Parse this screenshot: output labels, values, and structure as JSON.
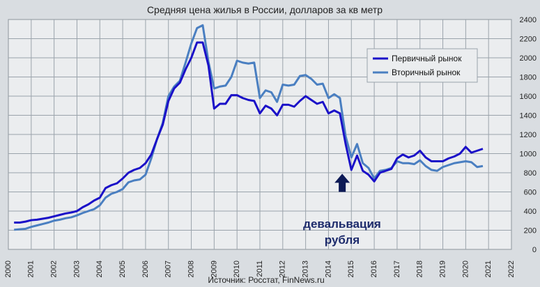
{
  "chart_data": {
    "type": "line",
    "title": "Средняя цена жилья в России, долларов за кв метр",
    "xlabel": "",
    "ylabel": "",
    "source": "Источник: Росстат, FinNews.ru",
    "xlim": [
      2000,
      2022
    ],
    "ylim": [
      0,
      2400
    ],
    "x_ticks": [
      "2000",
      "2001",
      "2002",
      "2003",
      "2004",
      "2005",
      "2006",
      "2007",
      "2008",
      "2009",
      "2010",
      "2011",
      "2012",
      "2013",
      "2014",
      "2015",
      "2016",
      "2017",
      "2018",
      "2019",
      "2020",
      "2021",
      "2022"
    ],
    "y_ticks": [
      "0",
      "200",
      "400",
      "600",
      "800",
      "1000",
      "1200",
      "1400",
      "1600",
      "1800",
      "2000",
      "2200",
      "2400"
    ],
    "grid": true,
    "legend_position": "top-right",
    "annotation": {
      "lines": [
        "девальвация",
        "рубля"
      ],
      "arrow_x": 2014.6,
      "arrow_y_from": 600,
      "arrow_y_to": 790
    },
    "colors": {
      "primary": "#1a10c8",
      "secondary": "#4a7fc1",
      "plot_bg": "#ebedef",
      "grid": "#9aa3ab",
      "arrow": "#0d1a56"
    },
    "series": [
      {
        "name": "Первичный рынок",
        "x": [
          2000.25,
          2000.5,
          2000.75,
          2001,
          2001.25,
          2001.5,
          2001.75,
          2002,
          2002.25,
          2002.5,
          2002.75,
          2003,
          2003.25,
          2003.5,
          2003.75,
          2004,
          2004.25,
          2004.5,
          2004.75,
          2005,
          2005.25,
          2005.5,
          2005.75,
          2006,
          2006.25,
          2006.5,
          2006.75,
          2007,
          2007.25,
          2007.5,
          2007.75,
          2008,
          2008.25,
          2008.5,
          2008.75,
          2009,
          2009.25,
          2009.5,
          2009.75,
          2010,
          2010.25,
          2010.5,
          2010.75,
          2011,
          2011.25,
          2011.5,
          2011.75,
          2012,
          2012.25,
          2012.5,
          2012.75,
          2013,
          2013.25,
          2013.5,
          2013.75,
          2014,
          2014.25,
          2014.5,
          2014.75,
          2015,
          2015.25,
          2015.5,
          2015.75,
          2016,
          2016.25,
          2016.5,
          2016.75,
          2017,
          2017.25,
          2017.5,
          2017.75,
          2018,
          2018.25,
          2018.5,
          2018.75,
          2019,
          2019.25,
          2019.5,
          2019.75,
          2020,
          2020.25,
          2020.5,
          2020.75
        ],
        "values": [
          280,
          280,
          290,
          305,
          310,
          320,
          330,
          345,
          360,
          375,
          385,
          400,
          440,
          470,
          510,
          540,
          640,
          670,
          690,
          740,
          800,
          830,
          850,
          900,
          990,
          1150,
          1300,
          1550,
          1680,
          1740,
          1880,
          2000,
          2160,
          2160,
          1920,
          1470,
          1520,
          1520,
          1610,
          1610,
          1580,
          1560,
          1550,
          1420,
          1500,
          1470,
          1400,
          1510,
          1510,
          1490,
          1550,
          1600,
          1560,
          1520,
          1540,
          1420,
          1450,
          1420,
          1100,
          830,
          980,
          820,
          780,
          710,
          800,
          820,
          840,
          950,
          990,
          960,
          980,
          1030,
          960,
          920,
          920,
          920,
          950,
          970,
          1000,
          1070,
          1010,
          1030,
          1050
        ]
      },
      {
        "name": "Вторичный рынок",
        "x": [
          2000.25,
          2000.5,
          2000.75,
          2001,
          2001.25,
          2001.5,
          2001.75,
          2002,
          2002.25,
          2002.5,
          2002.75,
          2003,
          2003.25,
          2003.5,
          2003.75,
          2004,
          2004.25,
          2004.5,
          2004.75,
          2005,
          2005.25,
          2005.5,
          2005.75,
          2006,
          2006.25,
          2006.5,
          2006.75,
          2007,
          2007.25,
          2007.5,
          2007.75,
          2008,
          2008.25,
          2008.5,
          2008.75,
          2009,
          2009.25,
          2009.5,
          2009.75,
          2010,
          2010.25,
          2010.5,
          2010.75,
          2011,
          2011.25,
          2011.5,
          2011.75,
          2012,
          2012.25,
          2012.5,
          2012.75,
          2013,
          2013.25,
          2013.5,
          2013.75,
          2014,
          2014.25,
          2014.5,
          2014.75,
          2015,
          2015.25,
          2015.5,
          2015.75,
          2016,
          2016.25,
          2016.5,
          2016.75,
          2017,
          2017.25,
          2017.5,
          2017.75,
          2018,
          2018.25,
          2018.5,
          2018.75,
          2019,
          2019.25,
          2019.5,
          2019.75,
          2020,
          2020.25,
          2020.5,
          2020.75
        ],
        "values": [
          205,
          210,
          215,
          235,
          250,
          265,
          280,
          300,
          310,
          325,
          335,
          355,
          380,
          400,
          420,
          460,
          540,
          580,
          600,
          630,
          700,
          720,
          730,
          780,
          950,
          1150,
          1320,
          1600,
          1700,
          1760,
          1950,
          2150,
          2310,
          2340,
          1960,
          1680,
          1700,
          1710,
          1800,
          1970,
          1950,
          1940,
          1950,
          1580,
          1660,
          1640,
          1540,
          1720,
          1710,
          1720,
          1810,
          1820,
          1780,
          1720,
          1730,
          1580,
          1620,
          1580,
          1180,
          960,
          1100,
          900,
          850,
          740,
          820,
          830,
          850,
          920,
          900,
          900,
          890,
          930,
          870,
          830,
          820,
          860,
          880,
          900,
          910,
          920,
          910,
          860,
          870
        ]
      }
    ]
  }
}
